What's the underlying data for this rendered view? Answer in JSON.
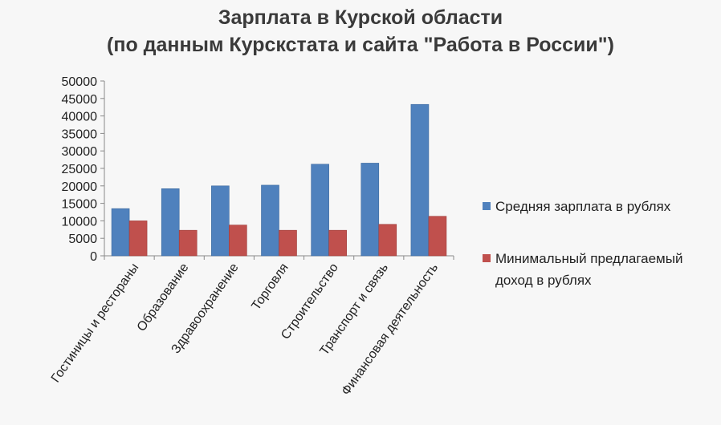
{
  "chart_data": {
    "type": "bar",
    "title": "Зарплата в Курской области",
    "subtitle": "(по данным Курскстата и сайта \"Работа в России\")",
    "categories": [
      "Гостиницы и рестораны",
      "Образование",
      "Здравоохранение",
      "Торговля",
      "Строительство",
      "Транспорт и связь",
      "Финансовая деятельность"
    ],
    "series": [
      {
        "name": "Средняя зарплата в рублях",
        "color": "#4f81bd",
        "values": [
          13500,
          19200,
          20000,
          20200,
          26200,
          26500,
          43300
        ]
      },
      {
        "name": "Минимальный предлагаемый доход в рублях",
        "color": "#c0504d",
        "values": [
          10000,
          7300,
          8800,
          7300,
          7300,
          9000,
          11300
        ]
      }
    ],
    "ylim": [
      0,
      50000
    ],
    "yticks": [
      0,
      5000,
      10000,
      15000,
      20000,
      25000,
      30000,
      35000,
      40000,
      45000,
      50000
    ],
    "grid": false,
    "legend": "right",
    "legend_lines": [
      [
        "Средняя зарплата в рублях"
      ],
      [
        "Минимальный предлагаемый",
        "доход в рублях"
      ]
    ]
  }
}
